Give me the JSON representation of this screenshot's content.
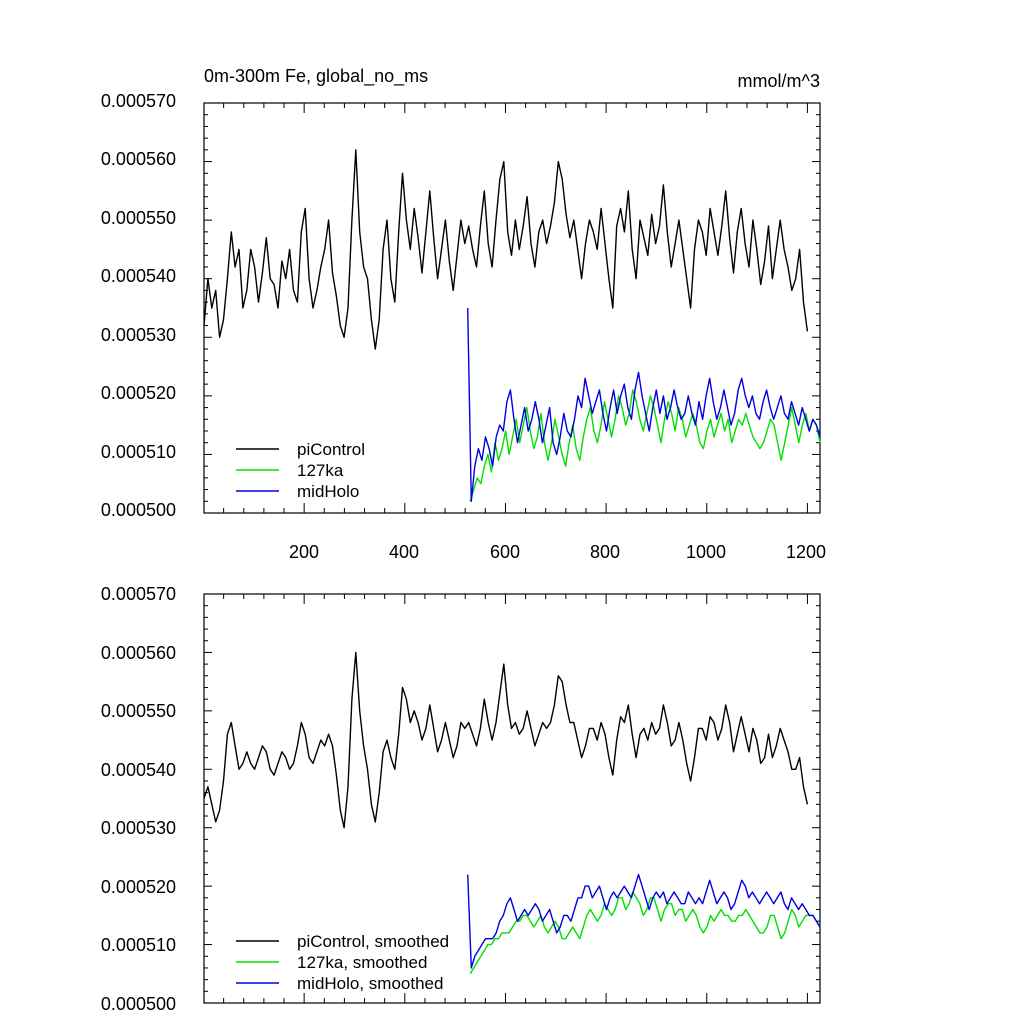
{
  "chart_data": [
    {
      "type": "line",
      "title": "0m-300m Fe, global_no_ms",
      "units": "mmol/m^3",
      "xlim": [
        1,
        1225
      ],
      "ylim": [
        0.0005,
        0.00057
      ],
      "x_ticks": [
        "200",
        "400",
        "600",
        "800",
        "1000",
        "1200"
      ],
      "y_ticks": [
        "0.000500",
        "0.000510",
        "0.000520",
        "0.000530",
        "0.000540",
        "0.000550",
        "0.000560",
        "0.000570"
      ],
      "legend_position": "bottom-left",
      "series": [
        {
          "name": "piControl",
          "color": "#000000",
          "x_start": 1,
          "x_end": 1200,
          "values": [
            0.000532,
            0.00054,
            0.000535,
            0.000538,
            0.00053,
            0.000533,
            0.00054,
            0.000548,
            0.000542,
            0.000545,
            0.000535,
            0.000538,
            0.000545,
            0.000542,
            0.000536,
            0.000541,
            0.000547,
            0.00054,
            0.000539,
            0.000535,
            0.000543,
            0.00054,
            0.000545,
            0.000538,
            0.000536,
            0.000548,
            0.000552,
            0.00054,
            0.000535,
            0.000538,
            0.000542,
            0.000545,
            0.00055,
            0.000541,
            0.000537,
            0.000532,
            0.00053,
            0.000535,
            0.00055,
            0.000562,
            0.000548,
            0.000542,
            0.00054,
            0.000533,
            0.000528,
            0.000533,
            0.000545,
            0.00055,
            0.00054,
            0.000536,
            0.000548,
            0.000558,
            0.00055,
            0.000545,
            0.000552,
            0.000547,
            0.000541,
            0.000548,
            0.000555,
            0.000547,
            0.00054,
            0.000545,
            0.00055,
            0.000543,
            0.000538,
            0.000544,
            0.00055,
            0.000546,
            0.000549,
            0.000545,
            0.000542,
            0.000549,
            0.000555,
            0.000546,
            0.000542,
            0.00055,
            0.000557,
            0.00056,
            0.000548,
            0.000544,
            0.00055,
            0.000545,
            0.000549,
            0.000554,
            0.000546,
            0.000542,
            0.000548,
            0.00055,
            0.000546,
            0.000549,
            0.000553,
            0.00056,
            0.000557,
            0.000551,
            0.000547,
            0.00055,
            0.000545,
            0.00054,
            0.000546,
            0.00055,
            0.000548,
            0.000545,
            0.000552,
            0.000546,
            0.00054,
            0.000535,
            0.000549,
            0.000552,
            0.000548,
            0.000555,
            0.000545,
            0.00054,
            0.00055,
            0.000547,
            0.000544,
            0.000551,
            0.000546,
            0.000549,
            0.000556,
            0.000548,
            0.000542,
            0.000546,
            0.00055,
            0.000545,
            0.00054,
            0.000535,
            0.000545,
            0.00055,
            0.000548,
            0.000544,
            0.000552,
            0.000548,
            0.000544,
            0.000549,
            0.000555,
            0.000547,
            0.000541,
            0.000548,
            0.000552,
            0.000546,
            0.000542,
            0.00055,
            0.000545,
            0.000539,
            0.000543,
            0.000549,
            0.00054,
            0.000545,
            0.00055,
            0.000545,
            0.000542,
            0.000538,
            0.00054,
            0.000545,
            0.000536,
            0.000531
          ]
        },
        {
          "name": "127ka",
          "color": "#00e000",
          "x_start": 530,
          "x_end": 1225,
          "values": [
            0.000502,
            0.000504,
            0.000506,
            0.000505,
            0.000508,
            0.00051,
            0.000507,
            0.000512,
            0.000509,
            0.000511,
            0.000514,
            0.00051,
            0.000513,
            0.000516,
            0.000512,
            0.000515,
            0.000518,
            0.000514,
            0.000511,
            0.000513,
            0.000517,
            0.000512,
            0.000509,
            0.000512,
            0.000516,
            0.000513,
            0.00051,
            0.000508,
            0.000512,
            0.000515,
            0.000511,
            0.000509,
            0.000513,
            0.000516,
            0.000518,
            0.000514,
            0.000512,
            0.000515,
            0.000519,
            0.000516,
            0.000513,
            0.000516,
            0.00052,
            0.000518,
            0.000515,
            0.000517,
            0.000521,
            0.000519,
            0.000516,
            0.000514,
            0.000517,
            0.00052,
            0.000518,
            0.000515,
            0.000512,
            0.000516,
            0.000519,
            0.000517,
            0.000514,
            0.000518,
            0.000516,
            0.000513,
            0.000515,
            0.000517,
            0.000515,
            0.000512,
            0.000511,
            0.000514,
            0.000516,
            0.000513,
            0.000515,
            0.000517,
            0.000514,
            0.000516,
            0.000512,
            0.000514,
            0.000516,
            0.000515,
            0.000517,
            0.000515,
            0.000513,
            0.000512,
            0.000511,
            0.000512,
            0.000514,
            0.000516,
            0.000515,
            0.000512,
            0.000509,
            0.000512,
            0.000515,
            0.000518,
            0.000515,
            0.000512,
            0.000515,
            0.000517,
            0.000514,
            0.000516,
            0.000515,
            0.000512
          ]
        },
        {
          "name": "midHolo",
          "color": "#0000e0",
          "x_start": 525,
          "x_end": 1225,
          "values": [
            0.000535,
            0.000502,
            0.000508,
            0.000511,
            0.000509,
            0.000513,
            0.000511,
            0.000508,
            0.000513,
            0.000515,
            0.000514,
            0.000519,
            0.000521,
            0.000516,
            0.000512,
            0.000515,
            0.000518,
            0.000514,
            0.000516,
            0.000519,
            0.000516,
            0.000512,
            0.000515,
            0.000518,
            0.000512,
            0.00051,
            0.000513,
            0.000517,
            0.000514,
            0.000513,
            0.000516,
            0.00052,
            0.000518,
            0.000523,
            0.00052,
            0.000517,
            0.000519,
            0.000521,
            0.000517,
            0.000514,
            0.000518,
            0.000521,
            0.000517,
            0.00052,
            0.000522,
            0.000518,
            0.000516,
            0.000521,
            0.000524,
            0.00052,
            0.000517,
            0.000514,
            0.000518,
            0.000521,
            0.000517,
            0.00052,
            0.000516,
            0.000518,
            0.000521,
            0.000518,
            0.000516,
            0.000517,
            0.00052,
            0.000517,
            0.000515,
            0.000519,
            0.000516,
            0.00052,
            0.000523,
            0.000519,
            0.000516,
            0.000518,
            0.000521,
            0.000518,
            0.000515,
            0.000517,
            0.000521,
            0.000523,
            0.00052,
            0.000518,
            0.00052,
            0.000517,
            0.000516,
            0.000519,
            0.000521,
            0.000518,
            0.000516,
            0.000518,
            0.00052,
            0.000517,
            0.000516,
            0.000519,
            0.000517,
            0.000515,
            0.000518,
            0.000516,
            0.000514,
            0.000516,
            0.000515,
            0.000513
          ]
        }
      ]
    },
    {
      "type": "line",
      "title": "",
      "xlim": [
        1,
        1225
      ],
      "ylim": [
        0.0005,
        0.00057
      ],
      "y_ticks": [
        "0.000500",
        "0.000510",
        "0.000520",
        "0.000530",
        "0.000540",
        "0.000550",
        "0.000560",
        "0.000570"
      ],
      "legend_position": "bottom-left",
      "series": [
        {
          "name": "piControl, smoothed",
          "color": "#000000",
          "x_start": 1,
          "x_end": 1200,
          "values": [
            0.000535,
            0.000537,
            0.000534,
            0.000531,
            0.000533,
            0.000538,
            0.000546,
            0.000548,
            0.000544,
            0.00054,
            0.000541,
            0.000543,
            0.000541,
            0.00054,
            0.000542,
            0.000544,
            0.000543,
            0.00054,
            0.000539,
            0.000541,
            0.000543,
            0.000542,
            0.00054,
            0.000541,
            0.000544,
            0.000548,
            0.000546,
            0.000542,
            0.000541,
            0.000543,
            0.000545,
            0.000544,
            0.000546,
            0.000544,
            0.000539,
            0.000533,
            0.00053,
            0.000537,
            0.000552,
            0.00056,
            0.00055,
            0.000544,
            0.00054,
            0.000534,
            0.000531,
            0.000536,
            0.000543,
            0.000545,
            0.000542,
            0.00054,
            0.000546,
            0.000554,
            0.000552,
            0.000548,
            0.00055,
            0.000548,
            0.000545,
            0.000547,
            0.000551,
            0.000547,
            0.000543,
            0.000545,
            0.000548,
            0.000545,
            0.000542,
            0.000544,
            0.000548,
            0.000547,
            0.000548,
            0.000546,
            0.000544,
            0.000547,
            0.000552,
            0.000548,
            0.000545,
            0.000548,
            0.000553,
            0.000558,
            0.000551,
            0.000547,
            0.000548,
            0.000546,
            0.000547,
            0.00055,
            0.000547,
            0.000544,
            0.000546,
            0.000548,
            0.000547,
            0.000548,
            0.000551,
            0.000556,
            0.000555,
            0.000551,
            0.000548,
            0.000548,
            0.000545,
            0.000542,
            0.000544,
            0.000547,
            0.000547,
            0.000545,
            0.000548,
            0.000546,
            0.000542,
            0.000539,
            0.000545,
            0.000549,
            0.000548,
            0.000551,
            0.000546,
            0.000542,
            0.000546,
            0.000547,
            0.000545,
            0.000548,
            0.000546,
            0.000547,
            0.000551,
            0.000548,
            0.000544,
            0.000545,
            0.000548,
            0.000545,
            0.000541,
            0.000538,
            0.000542,
            0.000547,
            0.000547,
            0.000545,
            0.000549,
            0.000548,
            0.000545,
            0.000547,
            0.000551,
            0.000548,
            0.000543,
            0.000546,
            0.000549,
            0.000546,
            0.000543,
            0.000547,
            0.000545,
            0.000541,
            0.000542,
            0.000546,
            0.000542,
            0.000544,
            0.000547,
            0.000545,
            0.000543,
            0.00054,
            0.00054,
            0.000542,
            0.000537,
            0.000534
          ]
        },
        {
          "name": "127ka, smoothed",
          "color": "#00e000",
          "x_start": 530,
          "x_end": 1225,
          "values": [
            0.000505,
            0.000506,
            0.000507,
            0.000508,
            0.000509,
            0.00051,
            0.00051,
            0.000511,
            0.000511,
            0.000512,
            0.000512,
            0.000512,
            0.000513,
            0.000514,
            0.000514,
            0.000515,
            0.000515,
            0.000514,
            0.000513,
            0.000514,
            0.000515,
            0.000513,
            0.000512,
            0.000513,
            0.000514,
            0.000513,
            0.000511,
            0.000511,
            0.000512,
            0.000513,
            0.000512,
            0.000511,
            0.000513,
            0.000515,
            0.000516,
            0.000515,
            0.000514,
            0.000515,
            0.000517,
            0.000516,
            0.000515,
            0.000516,
            0.000518,
            0.000518,
            0.000516,
            0.000517,
            0.000519,
            0.000518,
            0.000517,
            0.000515,
            0.000516,
            0.000518,
            0.000518,
            0.000516,
            0.000514,
            0.000516,
            0.000517,
            0.000517,
            0.000515,
            0.000516,
            0.000516,
            0.000514,
            0.000515,
            0.000516,
            0.000515,
            0.000513,
            0.000512,
            0.000513,
            0.000515,
            0.000514,
            0.000515,
            0.000516,
            0.000515,
            0.000515,
            0.000514,
            0.000514,
            0.000515,
            0.000515,
            0.000516,
            0.000515,
            0.000514,
            0.000513,
            0.000512,
            0.000512,
            0.000513,
            0.000515,
            0.000515,
            0.000513,
            0.000511,
            0.000512,
            0.000514,
            0.000516,
            0.000515,
            0.000513,
            0.000514,
            0.000515,
            0.000515,
            0.000515,
            0.000514,
            0.000513
          ]
        },
        {
          "name": "midHolo, smoothed",
          "color": "#0000e0",
          "x_start": 525,
          "x_end": 1225,
          "values": [
            0.000522,
            0.000506,
            0.000508,
            0.000509,
            0.00051,
            0.000511,
            0.000511,
            0.000511,
            0.000512,
            0.000514,
            0.000515,
            0.000517,
            0.000518,
            0.000516,
            0.000514,
            0.000515,
            0.000516,
            0.000515,
            0.000516,
            0.000517,
            0.000516,
            0.000514,
            0.000515,
            0.000516,
            0.000514,
            0.000512,
            0.000513,
            0.000515,
            0.000515,
            0.000514,
            0.000516,
            0.000518,
            0.000518,
            0.00052,
            0.00052,
            0.000518,
            0.000519,
            0.00052,
            0.000518,
            0.000516,
            0.000518,
            0.000519,
            0.000518,
            0.000519,
            0.00052,
            0.000519,
            0.000518,
            0.00052,
            0.000522,
            0.00052,
            0.000518,
            0.000516,
            0.000518,
            0.000519,
            0.000518,
            0.000519,
            0.000517,
            0.000518,
            0.000519,
            0.000518,
            0.000517,
            0.000517,
            0.000519,
            0.000518,
            0.000517,
            0.000518,
            0.000517,
            0.000519,
            0.000521,
            0.000519,
            0.000517,
            0.000518,
            0.000519,
            0.000518,
            0.000516,
            0.000517,
            0.000519,
            0.000521,
            0.00052,
            0.000518,
            0.000519,
            0.000518,
            0.000517,
            0.000518,
            0.000519,
            0.000518,
            0.000517,
            0.000518,
            0.000519,
            0.000517,
            0.000516,
            0.000518,
            0.000517,
            0.000516,
            0.000517,
            0.000516,
            0.000515,
            0.000515,
            0.000514,
            0.000513
          ]
        }
      ]
    }
  ]
}
